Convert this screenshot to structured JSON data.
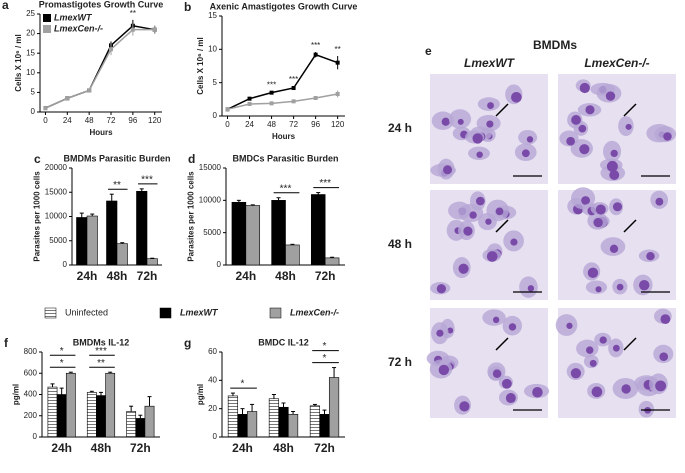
{
  "chart_data": [
    {
      "type": "line",
      "label": "a",
      "title": "Promastigotes Growth Curve",
      "x_label": "Hours",
      "y_label": "Cells X 10⁶ / ml",
      "x": [
        0,
        24,
        48,
        72,
        96,
        120
      ],
      "xlim": [
        -6,
        128
      ],
      "xticks": [
        0,
        24,
        48,
        72,
        96,
        120
      ],
      "ylim": [
        0,
        25
      ],
      "yticks": [
        0,
        5,
        10,
        15,
        20,
        25
      ],
      "legend": "upper left",
      "series": [
        {
          "name": "LmexWT",
          "color": "#000000",
          "values": [
            1,
            3.5,
            5.5,
            17,
            22,
            21
          ],
          "errors": [
            0.2,
            0.3,
            0.4,
            1,
            1.5,
            1
          ]
        },
        {
          "name": "LmexCen-/-",
          "color": "#a0a0a0",
          "values": [
            1,
            3.5,
            5.5,
            16,
            21,
            21
          ],
          "errors": [
            0.2,
            0.3,
            0.4,
            1.5,
            1.5,
            1
          ]
        }
      ],
      "annotations": [
        null,
        null,
        null,
        null,
        "**",
        null
      ]
    },
    {
      "type": "line",
      "label": "b",
      "title": "Axenic Amastigotes Growth Curve",
      "x_label": "Hours",
      "y_label": "Cells X 10⁶ / ml",
      "x": [
        0,
        24,
        48,
        72,
        96,
        120
      ],
      "xlim": [
        -6,
        128
      ],
      "xticks": [
        0,
        24,
        48,
        72,
        96,
        120
      ],
      "ylim": [
        0,
        15
      ],
      "yticks": [
        0,
        5,
        10,
        15
      ],
      "series": [
        {
          "color": "#000000",
          "values": [
            1,
            2.6,
            3.5,
            4.2,
            9.2,
            8
          ],
          "errors": [
            0.1,
            0.2,
            0.2,
            0.3,
            0.4,
            1
          ]
        },
        {
          "color": "#a0a0a0",
          "values": [
            1,
            1.8,
            1.9,
            2.2,
            2.7,
            3.3
          ],
          "errors": [
            0.1,
            0.1,
            0.1,
            0.2,
            0.3,
            0.5
          ]
        }
      ],
      "annotations": [
        null,
        null,
        "***",
        "***",
        "***",
        "**"
      ]
    },
    {
      "type": "bar",
      "label": "c",
      "title": "BMDMs Parasitic Burden",
      "y_label": "Parasites per 1000 cells",
      "categories": [
        "24h",
        "48h",
        "72h"
      ],
      "ylim": [
        0,
        20000
      ],
      "yticks": [
        0,
        5000,
        10000,
        15000,
        20000
      ],
      "series": [
        {
          "color": "#000000",
          "values": [
            9800,
            13200,
            15200
          ],
          "errors": [
            900,
            1400,
            500
          ]
        },
        {
          "color": "#a0a0a0",
          "values": [
            10100,
            4400,
            1300
          ],
          "errors": [
            400,
            200,
            100
          ]
        }
      ],
      "annotations": [
        [],
        [
          "**"
        ],
        [
          "***"
        ]
      ]
    },
    {
      "type": "bar",
      "label": "d",
      "title": "BMDCs Parasitic Burden",
      "y_label": "Parasites per 1000 cells",
      "categories": [
        "24h",
        "48h",
        "72h"
      ],
      "ylim": [
        0,
        15000
      ],
      "yticks": [
        0,
        5000,
        10000,
        15000
      ],
      "series": [
        {
          "color": "#000000",
          "values": [
            9700,
            10000,
            10900
          ],
          "errors": [
            300,
            400,
            300
          ]
        },
        {
          "color": "#a0a0a0",
          "values": [
            9200,
            3100,
            1100
          ],
          "errors": [
            100,
            100,
            100
          ]
        }
      ],
      "annotations": [
        [],
        [
          "***"
        ],
        [
          "***"
        ]
      ]
    },
    {
      "type": "bar",
      "label": "f",
      "title": "BMDMs IL-12",
      "y_label": "pg/ml",
      "categories": [
        "24h",
        "48h",
        "72h"
      ],
      "ylim": [
        0,
        800
      ],
      "yticks": [
        0,
        200,
        400,
        600,
        800
      ],
      "legend": "above",
      "series": [
        {
          "name": "Uninfected",
          "color": "#ffffff",
          "pattern": "horizontal-stripes",
          "values": [
            470,
            420,
            240
          ],
          "errors": [
            30,
            10,
            50
          ]
        },
        {
          "name": "LmexWT",
          "color": "#000000",
          "values": [
            400,
            390,
            175
          ],
          "errors": [
            60,
            30,
            30
          ]
        },
        {
          "name": "LmexCen-/-",
          "color": "#a0a0a0",
          "values": [
            600,
            600,
            290
          ],
          "errors": [
            10,
            10,
            90
          ]
        }
      ],
      "annotations": [
        [
          "*",
          "*"
        ],
        [
          "***",
          "**"
        ],
        []
      ]
    },
    {
      "type": "bar",
      "label": "g",
      "title": "BMDC IL-12",
      "y_label": "pg/ml",
      "categories": [
        "24h",
        "48h",
        "72h"
      ],
      "ylim": [
        0,
        60
      ],
      "yticks": [
        0,
        20,
        40,
        60
      ],
      "series": [
        {
          "color": "#ffffff",
          "pattern": "horizontal-stripes",
          "values": [
            29,
            27,
            22
          ],
          "errors": [
            2,
            3,
            1
          ]
        },
        {
          "color": "#000000",
          "values": [
            16,
            21,
            16
          ],
          "errors": [
            4,
            3,
            3
          ]
        },
        {
          "color": "#a0a0a0",
          "values": [
            18,
            16,
            42
          ],
          "errors": [
            5,
            2,
            7
          ]
        }
      ],
      "annotations": [
        [
          "*"
        ],
        [],
        [
          "*",
          "*"
        ]
      ]
    }
  ],
  "micrographs": {
    "label": "e",
    "title": "BMDMs",
    "columns": [
      "LmexWT",
      "LmexCen-/-"
    ],
    "rows": [
      "24 h",
      "48 h",
      "72 h"
    ]
  }
}
